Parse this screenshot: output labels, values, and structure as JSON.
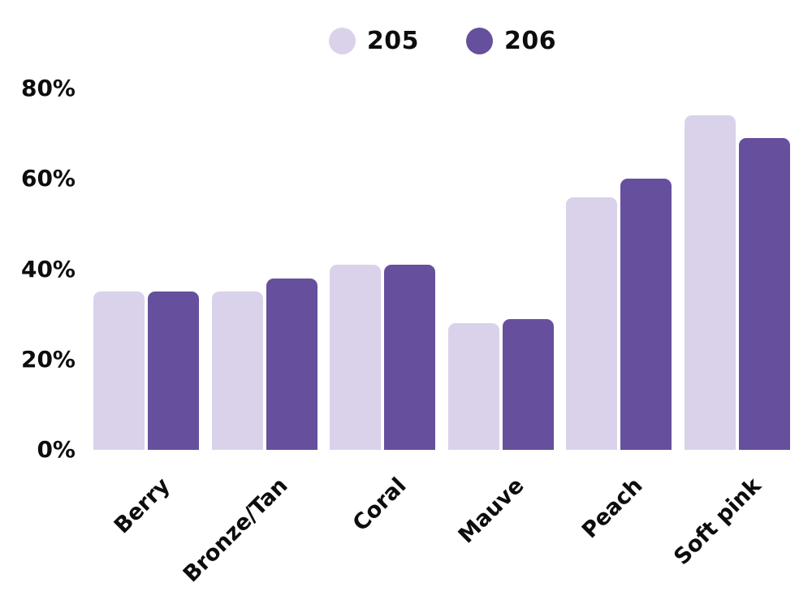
{
  "chart_data": {
    "type": "bar",
    "title": "",
    "xlabel": "",
    "ylabel": "",
    "categories": [
      "Berry",
      "Bronze/Tan",
      "Coral",
      "Mauve",
      "Peach",
      "Soft pink"
    ],
    "series": [
      {
        "name": "205",
        "color": "#DAD1EB",
        "values": [
          35,
          35,
          41,
          28,
          56,
          74
        ]
      },
      {
        "name": "206",
        "color": "#66509D",
        "values": [
          35,
          38,
          41,
          29,
          60,
          69
        ]
      }
    ],
    "y_ticks": [
      {
        "value": 0,
        "label": "0%"
      },
      {
        "value": 20,
        "label": "20%"
      },
      {
        "value": 40,
        "label": "40%"
      },
      {
        "value": 60,
        "label": "60%"
      },
      {
        "value": 80,
        "label": "80%"
      }
    ],
    "ylim": [
      0,
      80
    ],
    "grid": false,
    "legend_position": "top",
    "text_color": "#0d0d0d",
    "background_color": "#ffffff"
  }
}
